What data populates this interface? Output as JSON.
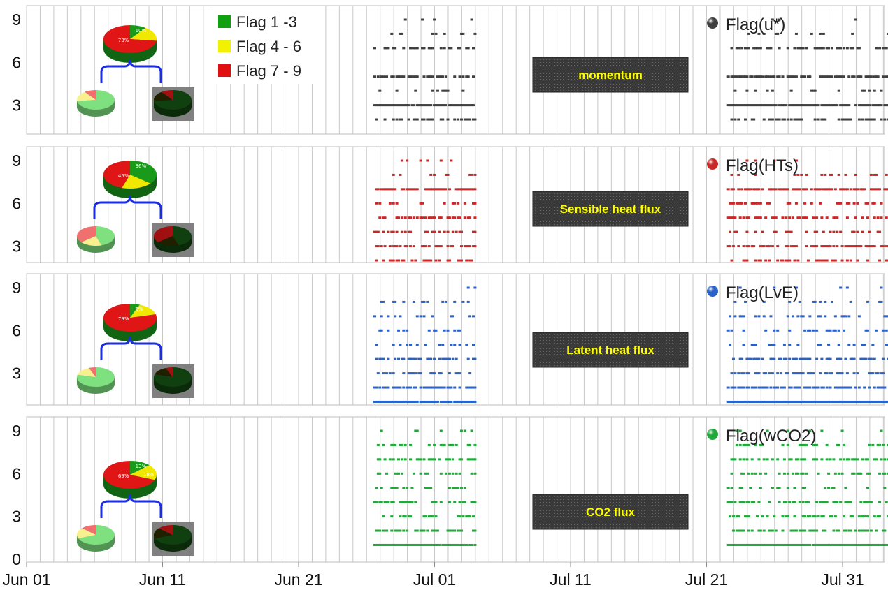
{
  "chart_data": {
    "type": "scatter",
    "x_ticks": [
      "Jun 01",
      "Jun 11",
      "Jun 21",
      "Jul 01",
      "Jul 11",
      "Jul 21",
      "Jul 31"
    ],
    "x_range": [
      "2010-06-01",
      "2010-08-04"
    ],
    "legend": {
      "placement": "top-left",
      "items": [
        {
          "label": "Flag 1 -3",
          "color": "#10a010"
        },
        {
          "label": "Flag 4 - 6",
          "color": "#f2f200"
        },
        {
          "label": "Flag 7 - 9",
          "color": "#e01010"
        }
      ]
    },
    "panels": [
      {
        "title": "momentum",
        "series_name": "Flag(u*)",
        "color": "#404040",
        "y_ticks": [
          "9",
          "6",
          "3"
        ],
        "ylim": [
          1,
          9.5
        ],
        "pie": {
          "green": 73,
          "yellow": 17,
          "red": 10,
          "labels": [
            "73%",
            "10%"
          ]
        },
        "day_periods": [
          [
            25.5,
            33.0
          ],
          [
            51.5,
            64.0
          ]
        ],
        "levels": [
          {
            "y": 1,
            "density": 0.95
          },
          {
            "y": 2,
            "density": 0.45
          },
          {
            "y": 3,
            "density": 0.9
          },
          {
            "y": 4,
            "density": 0.15
          },
          {
            "y": 5,
            "density": 0.6
          },
          {
            "y": 7,
            "density": 0.45
          },
          {
            "y": 8,
            "density": 0.12
          },
          {
            "y": 9,
            "density": 0.05
          }
        ]
      },
      {
        "title": "Sensible heat flux",
        "series_name": "Flag(HTs)",
        "color": "#c82828",
        "y_ticks": [
          "9",
          "6",
          "3"
        ],
        "ylim": [
          1,
          9.5
        ],
        "pie": {
          "green": 45,
          "yellow": 19,
          "red": 36,
          "labels": [
            "45%",
            "36%"
          ]
        },
        "day_periods": [
          [
            25.5,
            33.0
          ],
          [
            51.5,
            64.0
          ]
        ],
        "levels": [
          {
            "y": 1,
            "density": 0.7
          },
          {
            "y": 2,
            "density": 0.35
          },
          {
            "y": 3,
            "density": 0.55
          },
          {
            "y": 4,
            "density": 0.35
          },
          {
            "y": 5,
            "density": 0.45
          },
          {
            "y": 6,
            "density": 0.3
          },
          {
            "y": 7,
            "density": 0.75
          },
          {
            "y": 8,
            "density": 0.15
          },
          {
            "y": 9,
            "density": 0.08
          }
        ]
      },
      {
        "title": "Latent heat flux",
        "series_name": "Flag(LvE)",
        "color": "#2a62c8",
        "y_ticks": [
          "9",
          "6",
          "3"
        ],
        "ylim": [
          1,
          9.5
        ],
        "pie": {
          "green": 79,
          "yellow": 15,
          "red": 6,
          "labels": [
            "79%",
            "6%"
          ]
        },
        "day_periods": [
          [
            25.5,
            33.0
          ],
          [
            51.5,
            64.0
          ]
        ],
        "levels": [
          {
            "y": 1,
            "density": 0.98
          },
          {
            "y": 2,
            "density": 0.7
          },
          {
            "y": 3,
            "density": 0.45
          },
          {
            "y": 4,
            "density": 0.55
          },
          {
            "y": 5,
            "density": 0.2
          },
          {
            "y": 6,
            "density": 0.25
          },
          {
            "y": 7,
            "density": 0.3
          },
          {
            "y": 8,
            "density": 0.15
          },
          {
            "y": 9,
            "density": 0.06
          }
        ]
      },
      {
        "title": "CO2 flux",
        "series_name": "Flag(wCO2)",
        "color": "#20a83a",
        "y_ticks": [
          "9",
          "6",
          "3",
          "0"
        ],
        "ylim": [
          0,
          9.5
        ],
        "pie": {
          "green": 69,
          "yellow": 18,
          "red": 13,
          "labels": [
            "69%",
            "13%",
            "18%"
          ]
        },
        "day_periods": [
          [
            25.5,
            33.0
          ],
          [
            51.5,
            64.0
          ]
        ],
        "levels": [
          {
            "y": 1,
            "density": 0.98
          },
          {
            "y": 2,
            "density": 0.55
          },
          {
            "y": 3,
            "density": 0.4
          },
          {
            "y": 4,
            "density": 0.5
          },
          {
            "y": 5,
            "density": 0.25
          },
          {
            "y": 6,
            "density": 0.35
          },
          {
            "y": 7,
            "density": 0.45
          },
          {
            "y": 8,
            "density": 0.3
          },
          {
            "y": 9,
            "density": 0.1
          }
        ]
      }
    ]
  }
}
